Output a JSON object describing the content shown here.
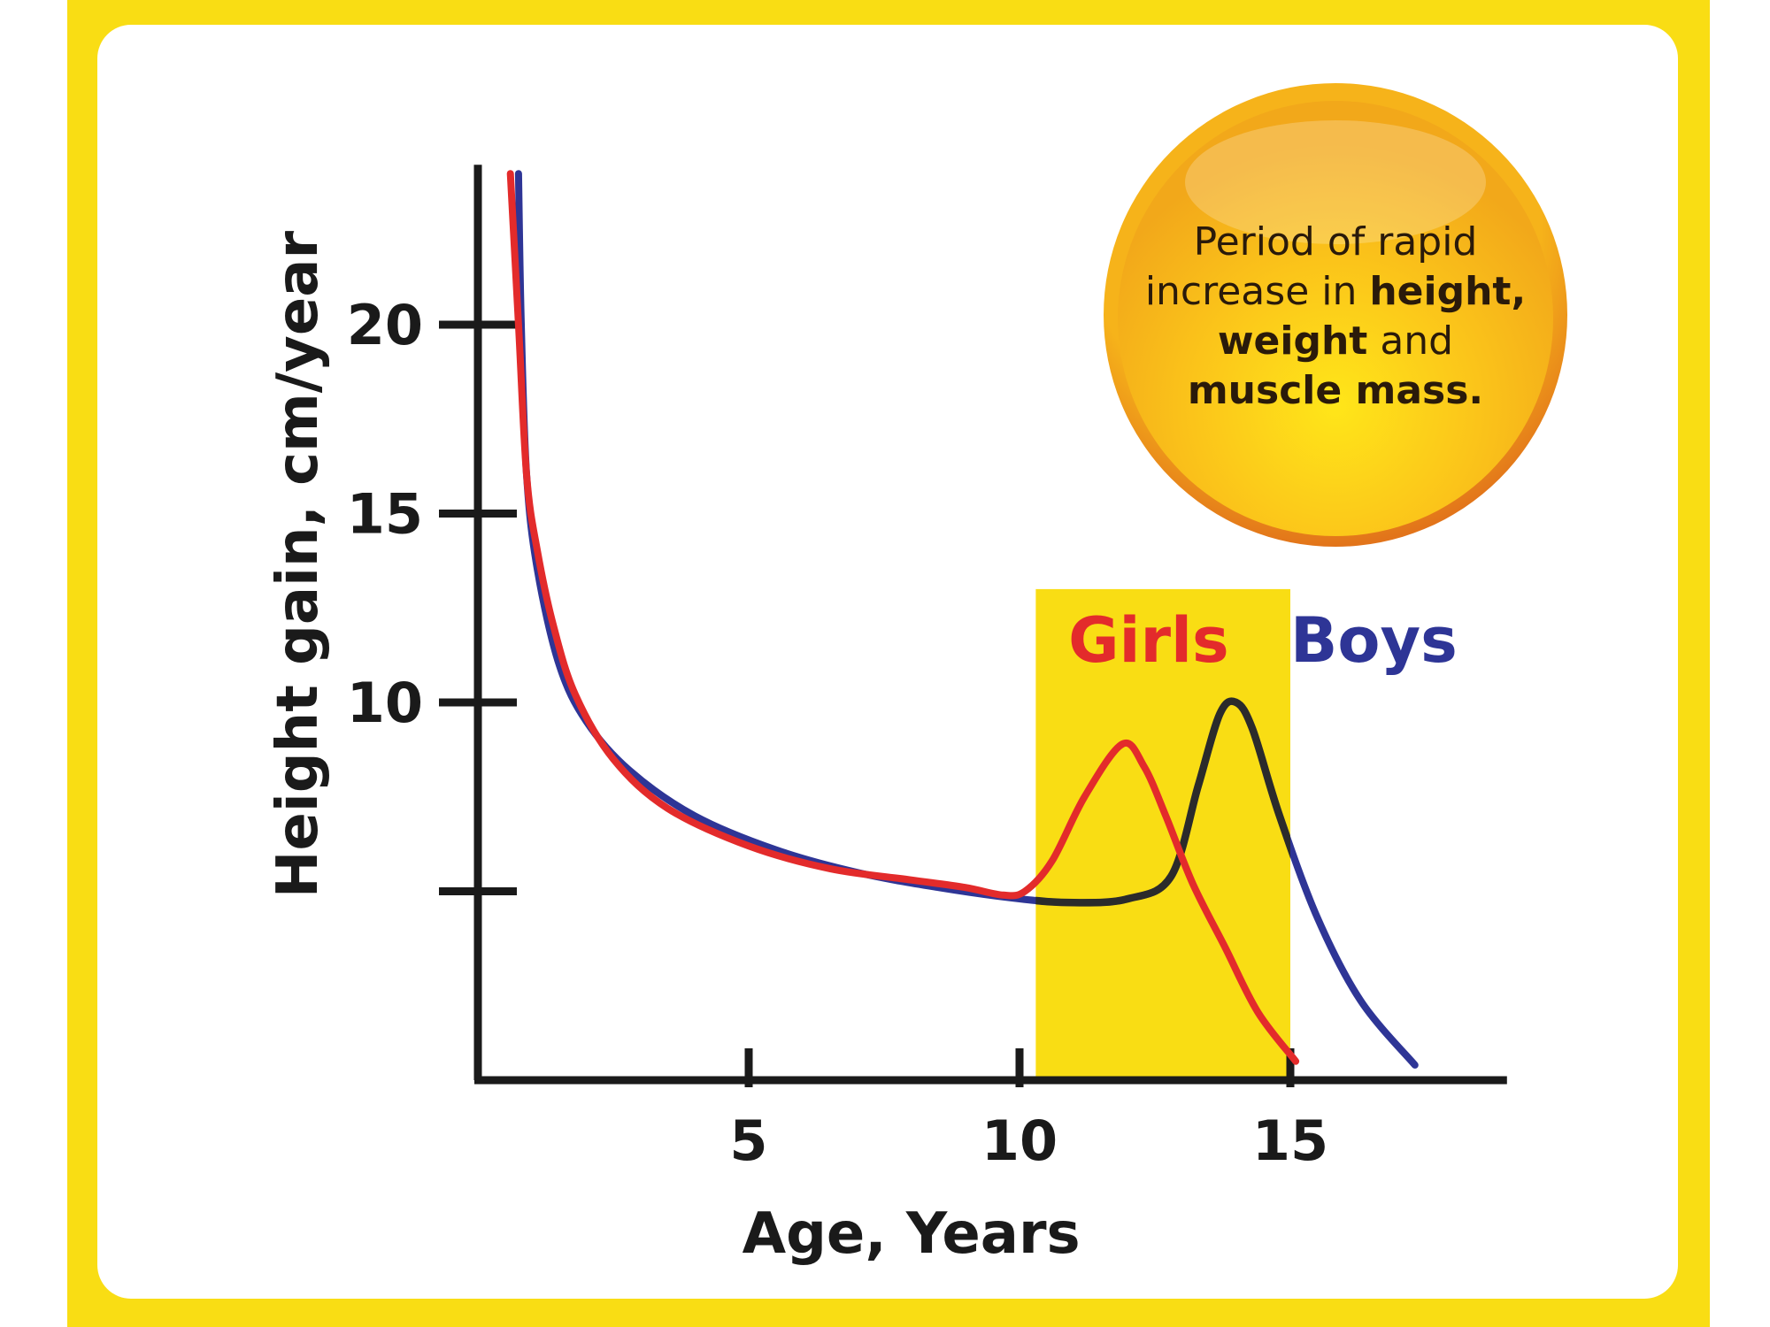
{
  "chart_data": {
    "type": "line",
    "title": "",
    "xlabel": "Age, Years",
    "ylabel": "Height gain, cm/year",
    "xlim": [
      0,
      19
    ],
    "ylim": [
      0,
      24
    ],
    "x_ticks": [
      5,
      10,
      15
    ],
    "y_ticks": [
      20,
      15,
      10
    ],
    "y_tick_marks": [
      20,
      15,
      10,
      5
    ],
    "highlight_region": {
      "x": [
        10.3,
        15
      ],
      "y_top": 13,
      "color": "#f9dd14"
    },
    "callout": {
      "lines": [
        [
          {
            "text": "Period of rapid",
            "bold": false
          }
        ],
        [
          {
            "text": "increase in ",
            "bold": false
          },
          {
            "text": "height,",
            "bold": true
          }
        ],
        [
          {
            "text": "weight",
            "bold": true
          },
          {
            "text": " and",
            "bold": false
          }
        ],
        [
          {
            "text": "muscle mass.",
            "bold": true
          }
        ]
      ],
      "color": "#f2a81a"
    },
    "series": [
      {
        "name": "Girls",
        "color": "#e32b2b",
        "points": [
          [
            0.6,
            24
          ],
          [
            0.75,
            20
          ],
          [
            0.9,
            16
          ],
          [
            1.1,
            14
          ],
          [
            1.4,
            12
          ],
          [
            1.8,
            10.2
          ],
          [
            2.5,
            8.5
          ],
          [
            3.5,
            7.2
          ],
          [
            5,
            6.2
          ],
          [
            6.5,
            5.6
          ],
          [
            8,
            5.3
          ],
          [
            9,
            5.1
          ],
          [
            9.7,
            4.9
          ],
          [
            10.1,
            5.0
          ],
          [
            10.6,
            5.8
          ],
          [
            11.2,
            7.5
          ],
          [
            11.9,
            8.9
          ],
          [
            12.3,
            8.3
          ],
          [
            12.7,
            7.0
          ],
          [
            13.2,
            5.2
          ],
          [
            13.8,
            3.5
          ],
          [
            14.4,
            1.8
          ],
          [
            15.1,
            0.5
          ]
        ]
      },
      {
        "name": "Boys",
        "color": "#2e3596",
        "points": [
          [
            0.75,
            24
          ],
          [
            0.8,
            20
          ],
          [
            0.9,
            16
          ],
          [
            1.1,
            13.5
          ],
          [
            1.5,
            11
          ],
          [
            2,
            9.5
          ],
          [
            2.8,
            8.2
          ],
          [
            4,
            7.0
          ],
          [
            5.5,
            6.1
          ],
          [
            7,
            5.5
          ],
          [
            8.5,
            5.1
          ],
          [
            10,
            4.8
          ],
          [
            11,
            4.7
          ],
          [
            12,
            4.8
          ],
          [
            12.8,
            5.4
          ],
          [
            13.3,
            7.8
          ],
          [
            13.7,
            9.7
          ],
          [
            14,
            10
          ],
          [
            14.3,
            9.3
          ],
          [
            14.8,
            7.0
          ],
          [
            15.5,
            4.3
          ],
          [
            16.3,
            2.1
          ],
          [
            17.3,
            0.4
          ]
        ],
        "segment_colors": [
          {
            "x": [
              10.3,
              15
            ],
            "color": "#2b2b2b"
          }
        ]
      }
    ]
  }
}
